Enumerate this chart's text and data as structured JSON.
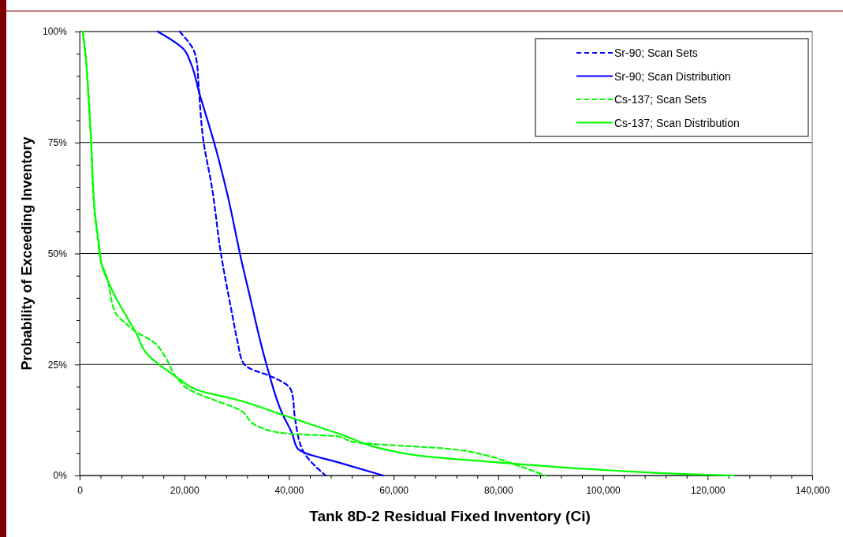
{
  "chart_data": {
    "type": "line",
    "xlabel": "Tank 8D-2 Residual Fixed Inventory (Ci)",
    "ylabel": "Probability of Exceeding Inventory",
    "xlim": [
      0,
      140000
    ],
    "xticks": [
      {
        "value": 0,
        "label": "0"
      },
      {
        "value": 4000,
        "label": null
      },
      {
        "value": 8000,
        "label": null
      },
      {
        "value": 12000,
        "label": null
      },
      {
        "value": 16000,
        "label": null
      },
      {
        "value": 20000,
        "label": "20,000"
      },
      {
        "value": 24000,
        "label": null
      },
      {
        "value": 28000,
        "label": null
      },
      {
        "value": 32000,
        "label": null
      },
      {
        "value": 36000,
        "label": null
      },
      {
        "value": 40000,
        "label": "40,000"
      },
      {
        "value": 44000,
        "label": null
      },
      {
        "value": 48000,
        "label": null
      },
      {
        "value": 52000,
        "label": null
      },
      {
        "value": 56000,
        "label": null
      },
      {
        "value": 60000,
        "label": "60,000"
      },
      {
        "value": 64000,
        "label": null
      },
      {
        "value": 68000,
        "label": null
      },
      {
        "value": 72000,
        "label": null
      },
      {
        "value": 76000,
        "label": null
      },
      {
        "value": 80000,
        "label": "80,000"
      },
      {
        "value": 84000,
        "label": null
      },
      {
        "value": 88000,
        "label": null
      },
      {
        "value": 92000,
        "label": null
      },
      {
        "value": 96000,
        "label": null
      },
      {
        "value": 100000,
        "label": "100,000"
      },
      {
        "value": 104000,
        "label": null
      },
      {
        "value": 108000,
        "label": null
      },
      {
        "value": 112000,
        "label": null
      },
      {
        "value": 116000,
        "label": null
      },
      {
        "value": 120000,
        "label": "120,000"
      },
      {
        "value": 124000,
        "label": null
      },
      {
        "value": 128000,
        "label": null
      },
      {
        "value": 132000,
        "label": null
      },
      {
        "value": 136000,
        "label": null
      },
      {
        "value": 140000,
        "label": "140,000"
      }
    ],
    "ylim": [
      0,
      100
    ],
    "yticks": [
      {
        "value": 0,
        "label": "0%"
      },
      {
        "value": 5,
        "label": null
      },
      {
        "value": 10,
        "label": null
      },
      {
        "value": 15,
        "label": null
      },
      {
        "value": 20,
        "label": null
      },
      {
        "value": 25,
        "label": "25%"
      },
      {
        "value": 30,
        "label": null
      },
      {
        "value": 35,
        "label": null
      },
      {
        "value": 40,
        "label": null
      },
      {
        "value": 45,
        "label": null
      },
      {
        "value": 50,
        "label": "50%"
      },
      {
        "value": 55,
        "label": null
      },
      {
        "value": 60,
        "label": null
      },
      {
        "value": 65,
        "label": null
      },
      {
        "value": 70,
        "label": null
      },
      {
        "value": 75,
        "label": "75%"
      },
      {
        "value": 80,
        "label": null
      },
      {
        "value": 85,
        "label": null
      },
      {
        "value": 90,
        "label": null
      },
      {
        "value": 95,
        "label": null
      },
      {
        "value": 100,
        "label": "100%"
      }
    ],
    "grid": "y",
    "legend": "top right",
    "marker": "none",
    "series": [
      {
        "name": "Sr-90; Scan Sets",
        "color": "#0000ff",
        "line_style": "dashed",
        "x": [
          19100,
          21900,
          22400,
          22700,
          23700,
          25200,
          27000,
          29200,
          30200,
          31200,
          32700,
          36200,
          40000,
          40600,
          41200,
          42700,
          47000
        ],
        "values": [
          100,
          95.5,
          93,
          88.5,
          75,
          65.5,
          50,
          36,
          30,
          25.5,
          24,
          22.5,
          20,
          18.5,
          12.5,
          5.5,
          0
        ]
      },
      {
        "name": "Sr-90; Scan Distribution",
        "color": "#0000ff",
        "line_style": "solid",
        "x": [
          14900,
          19900,
          21200,
          22900,
          25700,
          28200,
          31000,
          32200,
          35700,
          38700,
          40600,
          41700,
          43200,
          49300,
          58000
        ],
        "values": [
          100,
          96,
          93,
          86,
          75,
          63.5,
          48,
          42,
          25,
          14,
          9.5,
          6,
          5,
          3,
          0
        ]
      },
      {
        "name": "Cs-137; Scan Sets",
        "color": "#00ff00",
        "line_style": "dashed",
        "x": [
          600,
          1100,
          1800,
          2200,
          2800,
          3500,
          4100,
          5100,
          6900,
          8600,
          10600,
          14200,
          16200,
          18900,
          20700,
          25700,
          30200,
          34200,
          39200,
          49300,
          52500,
          70600,
          77800,
          82600,
          89000
        ],
        "values": [
          100,
          95,
          84,
          75,
          60,
          53,
          48,
          45,
          36.5,
          34.5,
          32.5,
          30,
          27,
          21.5,
          19.5,
          17,
          15,
          11,
          9.5,
          8.8,
          7.5,
          6,
          4.5,
          2.7,
          0
        ]
      },
      {
        "name": "Cs-137; Scan Distribution",
        "color": "#00ff00",
        "line_style": "solid",
        "x": [
          600,
          1100,
          1800,
          2200,
          2900,
          3900,
          4100,
          6100,
          10600,
          13600,
          15200,
          18700,
          23200,
          30200,
          39200,
          49300,
          59800,
          64600,
          82600,
          100700,
          118800,
          125000
        ],
        "values": [
          100,
          95,
          83,
          75,
          59.5,
          50,
          48,
          42,
          32.5,
          26.5,
          25,
          22,
          19,
          17,
          13.5,
          9.5,
          5.5,
          4.5,
          2.7,
          1.2,
          0.2,
          0
        ]
      }
    ]
  }
}
